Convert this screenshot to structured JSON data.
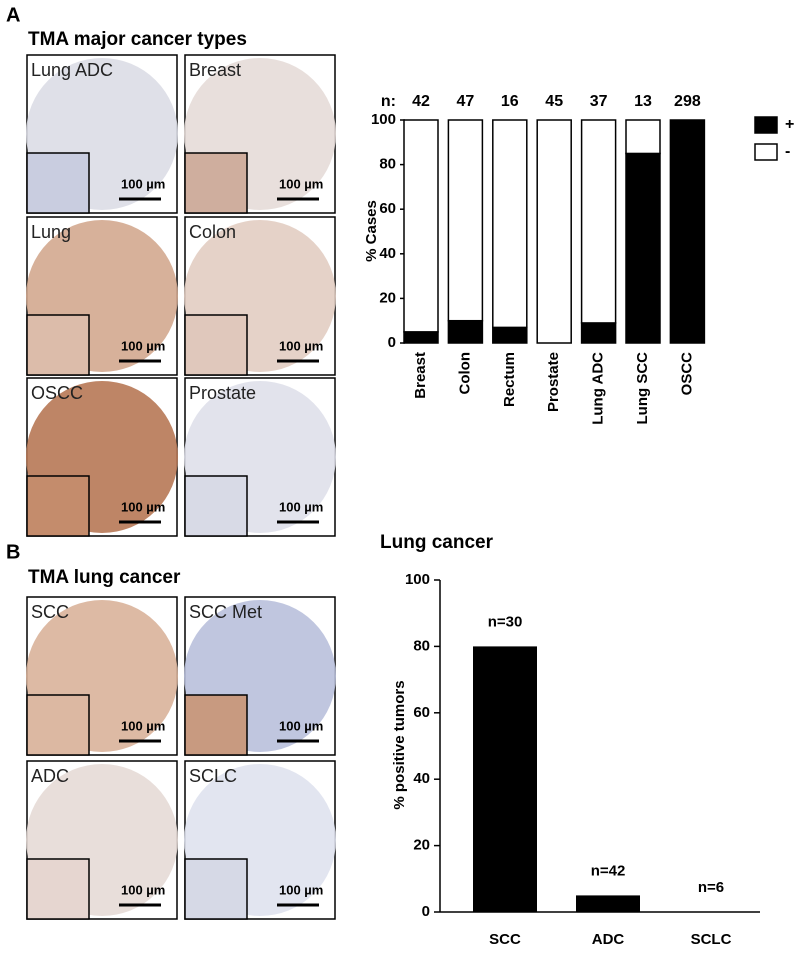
{
  "panel_a": {
    "label": "A",
    "title": "TMA major cancer types",
    "images": [
      {
        "label": "Lung ADC"
      },
      {
        "label": "Breast"
      },
      {
        "label": "Lung"
      },
      {
        "label": "Colon"
      },
      {
        "label": "OSCC"
      },
      {
        "label": "Prostate"
      }
    ]
  },
  "panel_b": {
    "label": "B",
    "title": "TMA lung cancer",
    "images": [
      {
        "label": "SCC"
      },
      {
        "label": "SCC Met"
      },
      {
        "label": "ADC"
      },
      {
        "label": "SCLC"
      }
    ]
  },
  "scale_bar": "100 µm",
  "chart_data": [
    {
      "type": "stacked-bar",
      "ylabel": "% Cases",
      "categories": [
        "Breast",
        "Colon",
        "Rectum",
        "Prostate",
        "Lung ADC",
        "Lung SCC",
        "OSCC"
      ],
      "n_prefix": "n:",
      "sample_sizes": [
        42,
        47,
        16,
        45,
        37,
        13,
        298
      ],
      "series": [
        {
          "name": "+",
          "color": "#000000",
          "values": [
            5,
            10,
            7,
            0,
            9,
            85,
            100
          ]
        },
        {
          "name": "-",
          "color": "#ffffff",
          "values": [
            95,
            90,
            93,
            100,
            91,
            15,
            0
          ]
        }
      ],
      "ylim": [
        0,
        100
      ],
      "yticks": [
        0,
        20,
        40,
        60,
        80,
        100
      ],
      "legend": "right"
    },
    {
      "type": "bar",
      "title": "Lung cancer",
      "ylabel": "% positive tumors",
      "categories": [
        "SCC",
        "ADC",
        "SCLC"
      ],
      "values": [
        80,
        5,
        0
      ],
      "color": "#000000",
      "annotations": [
        "n=30",
        "n=42",
        "n=6"
      ],
      "ylim": [
        0,
        100
      ],
      "yticks": [
        0,
        20,
        40,
        60,
        80,
        100
      ]
    }
  ]
}
